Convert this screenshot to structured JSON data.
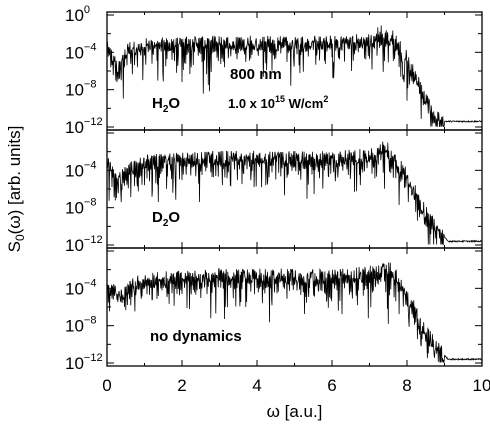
{
  "chart_data": {
    "type": "line",
    "xlabel": "ω [a.u.]",
    "ylabel": "S₀(ω) [arb. units]",
    "ylabel_parts": {
      "main": "S",
      "sub": "0",
      "rest": "(ω) [arb. units]"
    },
    "xlim": [
      0,
      10
    ],
    "x_ticks": [
      "0",
      "2",
      "4",
      "6",
      "8",
      "10"
    ],
    "ylim_log10": [
      -12,
      0
    ],
    "y_scale": "log",
    "y_tick_exponents": [
      "0",
      "-4",
      "-8",
      "-12"
    ],
    "y_tick_base": "10",
    "grid": false,
    "panels": [
      {
        "name": "H2O",
        "label_main": "H",
        "label_sub": "2",
        "label_rest": "O",
        "annotations": {
          "wavelength": "800 nm",
          "intensity_main": "1.0 x 10",
          "intensity_exp": "15",
          "intensity_unit": " W/cm",
          "intensity_unit_exp": "2"
        },
        "envelope_log10": [
          [
            0.0,
            -3.5
          ],
          [
            0.3,
            -5.5
          ],
          [
            0.6,
            -3.5
          ],
          [
            1.0,
            -3.2
          ],
          [
            2.0,
            -3.0
          ],
          [
            3.0,
            -2.9
          ],
          [
            4.0,
            -2.9
          ],
          [
            5.0,
            -2.9
          ],
          [
            6.0,
            -2.9
          ],
          [
            7.0,
            -2.7
          ],
          [
            7.4,
            -2.3
          ],
          [
            7.6,
            -2.8
          ],
          [
            8.0,
            -5.0
          ],
          [
            8.4,
            -8.0
          ],
          [
            8.7,
            -10.5
          ],
          [
            8.9,
            -11.4
          ],
          [
            10.0,
            -11.4
          ]
        ]
      },
      {
        "name": "D2O",
        "label_main": "D",
        "label_sub": "2",
        "label_rest": "O",
        "envelope_log10": [
          [
            0.0,
            -3.0
          ],
          [
            0.3,
            -5.0
          ],
          [
            0.6,
            -3.8
          ],
          [
            1.0,
            -3.0
          ],
          [
            2.0,
            -2.8
          ],
          [
            3.0,
            -2.6
          ],
          [
            4.0,
            -2.6
          ],
          [
            5.0,
            -2.6
          ],
          [
            6.0,
            -2.7
          ],
          [
            7.0,
            -2.3
          ],
          [
            7.4,
            -2.0
          ],
          [
            7.6,
            -2.6
          ],
          [
            8.0,
            -5.0
          ],
          [
            8.5,
            -8.5
          ],
          [
            8.9,
            -10.8
          ],
          [
            9.1,
            -11.6
          ],
          [
            10.0,
            -11.6
          ]
        ]
      },
      {
        "name": "no dynamics",
        "label": "no dynamics",
        "envelope_log10": [
          [
            0.0,
            -3.0
          ],
          [
            0.3,
            -5.0
          ],
          [
            0.6,
            -3.8
          ],
          [
            1.0,
            -3.0
          ],
          [
            2.0,
            -2.8
          ],
          [
            3.0,
            -2.6
          ],
          [
            4.0,
            -2.6
          ],
          [
            5.0,
            -2.6
          ],
          [
            6.0,
            -2.7
          ],
          [
            7.0,
            -2.3
          ],
          [
            7.4,
            -2.0
          ],
          [
            7.6,
            -2.6
          ],
          [
            8.0,
            -5.0
          ],
          [
            8.5,
            -8.5
          ],
          [
            8.9,
            -10.8
          ],
          [
            9.1,
            -11.6
          ],
          [
            10.0,
            -11.6
          ]
        ]
      }
    ]
  }
}
